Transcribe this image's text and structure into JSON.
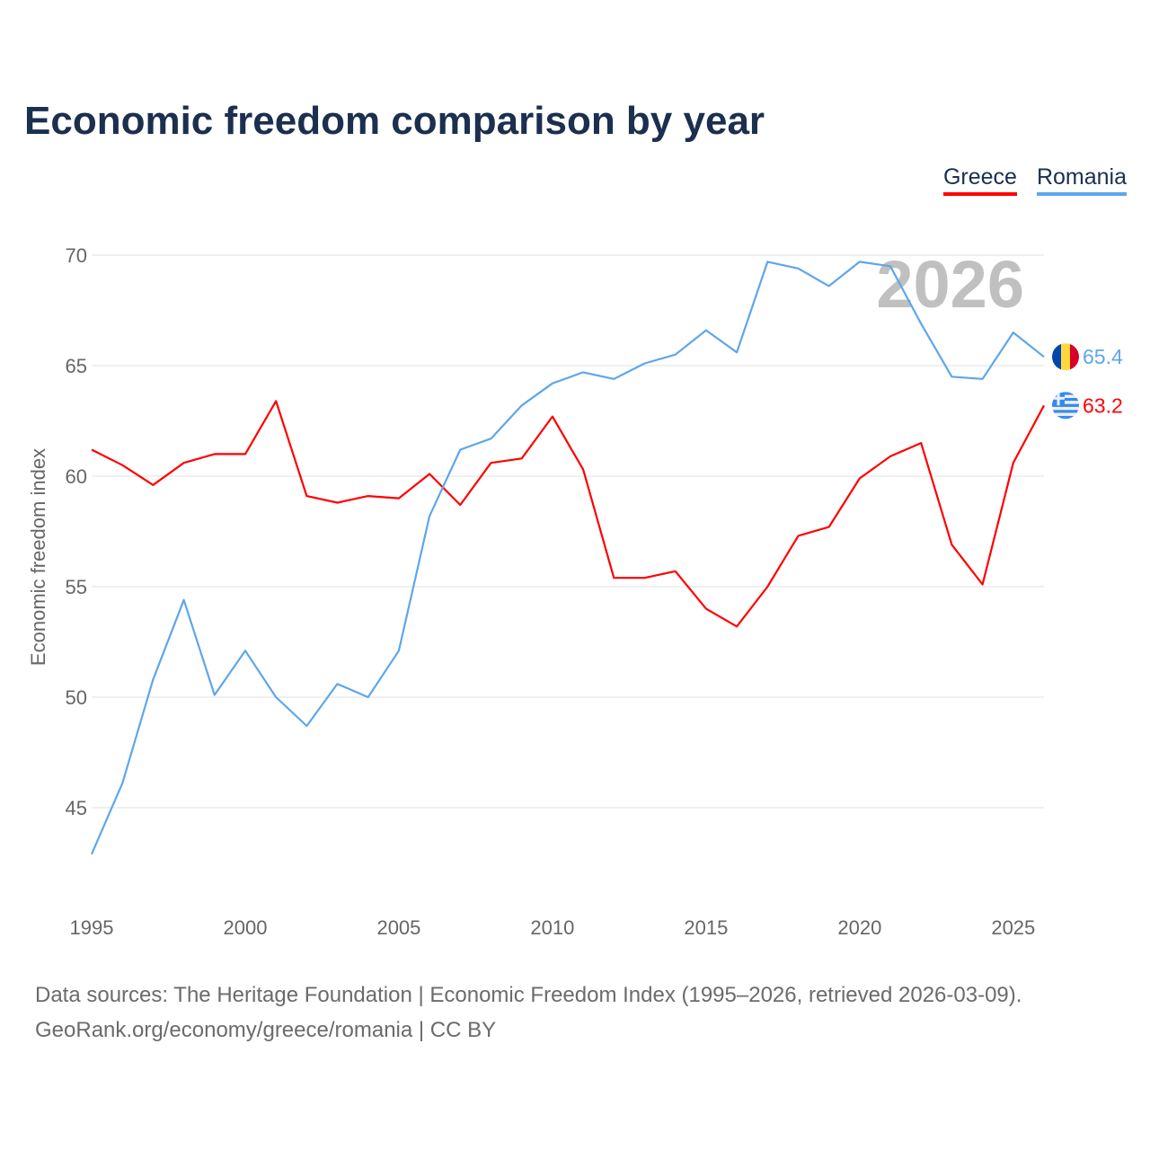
{
  "chart_data": {
    "type": "line",
    "title": "Economic freedom comparison by year",
    "ylabel": "Economic freedom index",
    "xlabel": "",
    "xlim": [
      1995,
      2026
    ],
    "ylim": [
      42,
      72
    ],
    "yticks": [
      45,
      50,
      55,
      60,
      65,
      70
    ],
    "xticks": [
      1995,
      2000,
      2005,
      2010,
      2015,
      2020,
      2025
    ],
    "grid": true,
    "legend_position": "top-right",
    "year_watermark": "2026",
    "x": [
      1995,
      1996,
      1997,
      1998,
      1999,
      2000,
      2001,
      2002,
      2003,
      2004,
      2005,
      2006,
      2007,
      2008,
      2009,
      2010,
      2011,
      2012,
      2013,
      2014,
      2015,
      2016,
      2017,
      2018,
      2019,
      2020,
      2021,
      2022,
      2023,
      2024,
      2025,
      2026
    ],
    "series": [
      {
        "name": "Greece",
        "color": "#ff0000",
        "end_label": "63.2",
        "flag": "greece-flag",
        "values": [
          61.2,
          60.5,
          59.6,
          60.6,
          61.0,
          61.0,
          63.4,
          59.1,
          58.8,
          59.1,
          59.0,
          60.1,
          58.7,
          60.6,
          60.8,
          62.7,
          60.3,
          55.4,
          55.4,
          55.7,
          54.0,
          53.2,
          55.0,
          57.3,
          57.7,
          59.9,
          60.9,
          61.5,
          56.9,
          55.1,
          60.6,
          63.2
        ]
      },
      {
        "name": "Romania",
        "color": "#5ea6ea",
        "end_label": "65.4",
        "flag": "romania-flag",
        "values": [
          42.9,
          46.1,
          50.8,
          54.4,
          50.1,
          52.1,
          50.0,
          48.7,
          50.6,
          50.0,
          52.1,
          58.2,
          61.2,
          61.7,
          63.2,
          64.2,
          64.7,
          64.4,
          65.1,
          65.5,
          66.6,
          65.6,
          69.7,
          69.4,
          68.6,
          69.7,
          69.5,
          66.9,
          64.5,
          64.4,
          66.5,
          65.4
        ]
      }
    ]
  },
  "source": {
    "line1": "Data sources: The Heritage Foundation | Economic Freedom Index (1995–2026, retrieved 2026-03-09).",
    "line2": "GeoRank.org/economy/greece/romania | CC BY"
  }
}
